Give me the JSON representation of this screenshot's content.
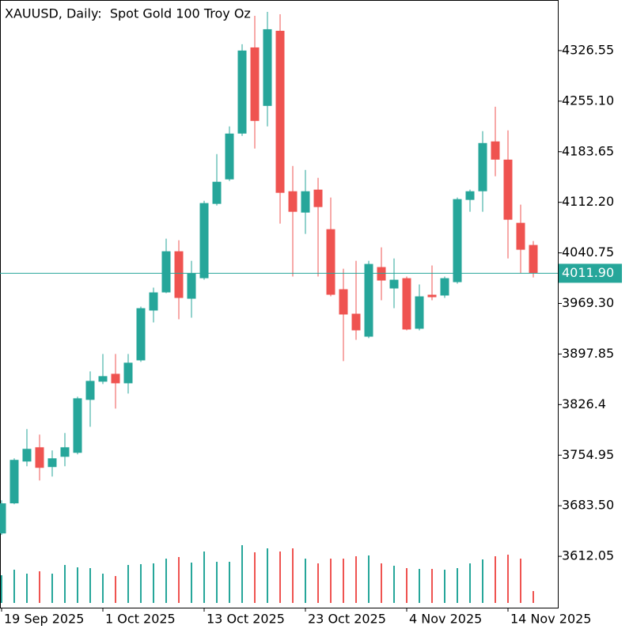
{
  "chart_data": {
    "type": "candlestick",
    "title": "XAUUSD, Daily:  Spot Gold 100 Troy Oz",
    "categories": [
      "19 Sep 2025",
      null,
      null,
      null,
      null,
      null,
      null,
      null,
      "1 Oct 2025",
      null,
      null,
      null,
      null,
      null,
      null,
      null,
      "13 Oct 2025",
      null,
      null,
      null,
      null,
      null,
      null,
      null,
      "23 Oct 2025",
      null,
      null,
      null,
      null,
      null,
      null,
      null,
      "4 Nov 2025",
      null,
      null,
      null,
      null,
      null,
      null,
      null,
      "14 Nov 2025",
      null,
      null
    ],
    "open": [
      3644.4,
      3686.9,
      3746.0,
      3766.1,
      3738.2,
      3752.7,
      3758.3,
      3833.1,
      3858.8,
      3869.9,
      3856.5,
      3888.9,
      3959.3,
      3984.9,
      4043.0,
      3976.0,
      4005.0,
      4110.0,
      4144.6,
      4209.3,
      4331.0,
      4248.4,
      4354.5,
      4127.8,
      4097.7,
      4130.1,
      4074.2,
      3989.4,
      3954.8,
      3922.4,
      4020.7,
      3990.5,
      4005.0,
      3933.6,
      3981.6,
      3980.5,
      3999.4,
      4115.6,
      4127.8,
      4198.2,
      4172.5,
      4083.2,
      4051.9
    ],
    "high": [
      3691.3,
      3750.5,
      3791.8,
      3784.0,
      3761.7,
      3786.2,
      3837.6,
      3873.3,
      3897.9,
      3897.9,
      3897.9,
      3964.8,
      3991.6,
      4060.8,
      4058.6,
      4029.6,
      4114.4,
      4180.3,
      4219.4,
      4335.5,
      4375.7,
      4381.3,
      4377.9,
      4163.6,
      4158.0,
      4146.8,
      4118.9,
      4018.4,
      4029.6,
      4029.6,
      4048.6,
      4032.9,
      4007.3,
      3996.1,
      4022.9,
      4007.3,
      4118.9,
      4130.1,
      4212.7,
      4247.3,
      4213.8,
      4108.9,
      4057.5
    ],
    "low": [
      3642.2,
      3685.7,
      3739.3,
      3719.2,
      3724.8,
      3739.3,
      3756.1,
      3795.1,
      3855.4,
      3820.8,
      3842.0,
      3886.7,
      3942.5,
      3983.8,
      3947.0,
      3949.2,
      4002.8,
      4107.7,
      4142.3,
      4206.0,
      4188.1,
      4219.4,
      4082.1,
      4007.3,
      4067.5,
      4007.3,
      3979.3,
      3887.8,
      3917.9,
      3920.2,
      3973.8,
      3962.6,
      3931.3,
      3931.3,
      3973.8,
      3977.1,
      3997.2,
      4098.8,
      4098.8,
      4149.0,
      4032.9,
      4011.7,
      4006.1
    ],
    "close": [
      3686.9,
      3748.3,
      3763.9,
      3737.1,
      3750.5,
      3766.1,
      3835.3,
      3859.9,
      3866.6,
      3856.5,
      3885.6,
      3962.6,
      3984.9,
      4043.0,
      3977.1,
      4011.7,
      4111.1,
      4141.2,
      4209.3,
      4326.6,
      4227.2,
      4356.7,
      4125.6,
      4098.8,
      4127.8,
      4105.5,
      3981.6,
      3953.7,
      3931.3,
      4025.1,
      4001.7,
      4002.8,
      3932.5,
      3979.3,
      3978.2,
      4005.0,
      4116.7,
      4127.8,
      4195.9,
      4172.5,
      4087.6,
      4045.2,
      4011.9
    ],
    "volume": [
      35,
      42,
      37,
      40,
      37,
      48,
      45,
      44,
      37,
      34,
      48,
      49,
      50,
      56,
      58,
      51,
      65,
      52,
      52,
      73,
      64,
      69,
      65,
      69,
      56,
      50,
      56,
      56,
      59,
      60,
      50,
      47,
      44,
      43,
      43,
      42,
      44,
      50,
      55,
      59,
      61,
      56,
      15
    ],
    "volume_lim": [
      0,
      100
    ],
    "up_color": "#26a69a",
    "down_color": "#ef5350",
    "ylim": [
      3539.5,
      4398.0
    ],
    "yticks": [
      4326.55,
      {
        "value": 4255.1,
        "label": "4255.10"
      },
      4183.65,
      {
        "value": 4112.2,
        "label": "4112.20"
      },
      4040.75,
      {
        "value": 3969.3,
        "label": "3969.30"
      },
      3897.85,
      3826.4,
      3754.95,
      {
        "value": 3683.5,
        "label": "3683.50"
      },
      3612.05
    ],
    "last_price": {
      "value": 4011.9,
      "label": "4011.90"
    }
  }
}
